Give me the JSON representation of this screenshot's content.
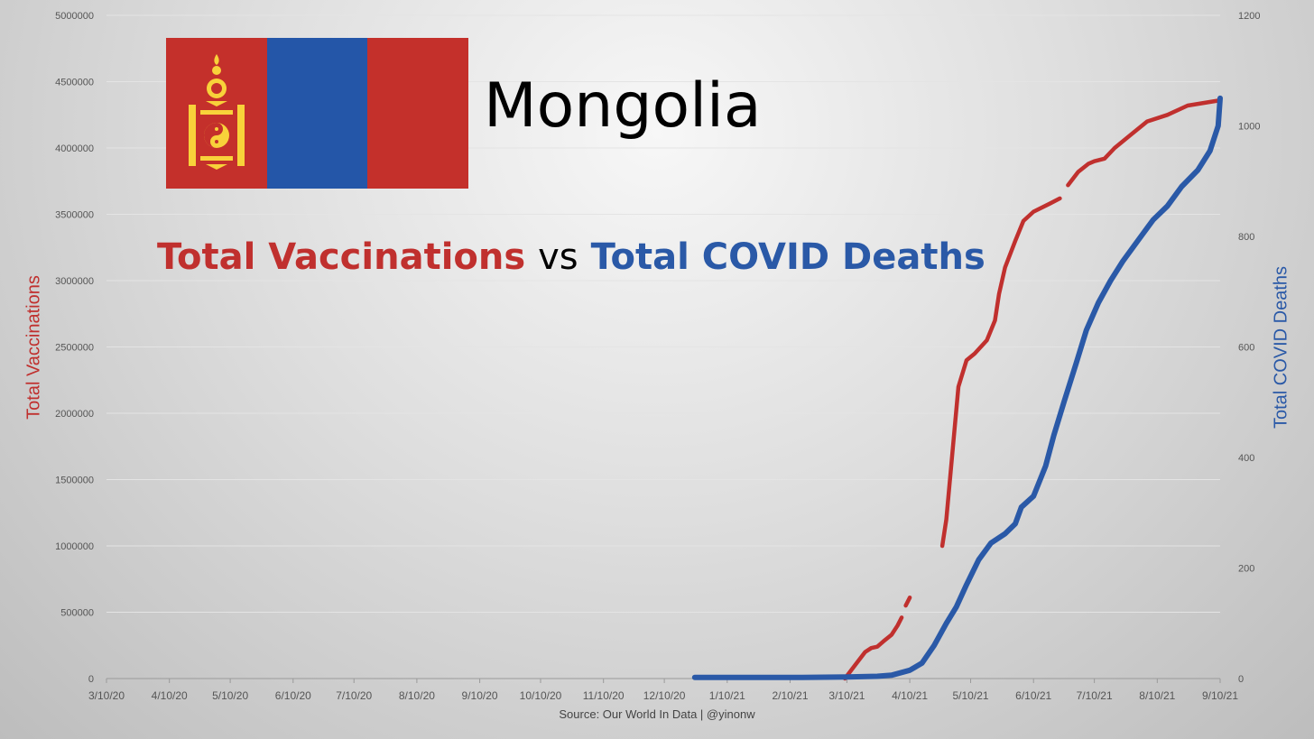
{
  "title": "Mongolia",
  "subtitle": {
    "part1": "Total Vaccinations",
    "part2": "vs",
    "part3": "Total COVID Deaths"
  },
  "source": "Source: Our World In Data | @yinonw",
  "colors": {
    "vaccinations": "#c0302e",
    "deaths": "#2a59a7",
    "flag_red": "#c4302b",
    "flag_blue": "#2456a8",
    "flag_yellow": "#f8d23a"
  },
  "flag_icon": "mongolia-flag-icon",
  "chart_data": {
    "type": "line",
    "xlabel": "",
    "ylabel_left": "Total Vaccinations",
    "ylabel_right": "Total COVID Deaths",
    "x_ticks": [
      "3/10/20",
      "4/10/20",
      "5/10/20",
      "6/10/20",
      "7/10/20",
      "8/10/20",
      "9/10/20",
      "10/10/20",
      "11/10/20",
      "12/10/20",
      "1/10/21",
      "2/10/21",
      "3/10/21",
      "4/10/21",
      "5/10/21",
      "6/10/21",
      "7/10/21",
      "8/10/21",
      "9/10/21"
    ],
    "y_left_ticks": [
      "0",
      "500000",
      "1000000",
      "1500000",
      "2000000",
      "2500000",
      "3000000",
      "3500000",
      "4000000",
      "4500000",
      "5000000"
    ],
    "y_right_ticks": [
      "0",
      "200",
      "400",
      "600",
      "800",
      "1000",
      "1200"
    ],
    "ylim_left": [
      0,
      5000000
    ],
    "ylim_right": [
      0,
      1200
    ],
    "grid": true,
    "series": [
      {
        "name": "Total Vaccinations",
        "axis": "left",
        "segments": [
          [
            [
              "3/9/21",
              0
            ],
            [
              "3/14/21",
              100000
            ],
            [
              "3/19/21",
              200000
            ],
            [
              "3/22/21",
              230000
            ],
            [
              "3/25/21",
              240000
            ],
            [
              "3/28/21",
              280000
            ],
            [
              "4/1/21",
              330000
            ],
            [
              "4/4/21",
              400000
            ],
            [
              "4/6/21",
              460000
            ]
          ],
          [
            [
              "4/8/21",
              550000
            ],
            [
              "4/10/21",
              610000
            ]
          ],
          [
            [
              "4/26/21",
              1000000
            ],
            [
              "4/28/21",
              1200000
            ],
            [
              "5/1/21",
              1700000
            ],
            [
              "5/4/21",
              2200000
            ],
            [
              "5/8/21",
              2400000
            ],
            [
              "5/12/21",
              2450000
            ],
            [
              "5/18/21",
              2550000
            ],
            [
              "5/22/21",
              2700000
            ],
            [
              "5/24/21",
              2900000
            ],
            [
              "5/27/21",
              3100000
            ],
            [
              "6/1/21",
              3300000
            ],
            [
              "6/5/21",
              3450000
            ],
            [
              "6/10/21",
              3520000
            ],
            [
              "6/18/21",
              3580000
            ],
            [
              "6/23/21",
              3620000
            ]
          ],
          [
            [
              "6/27/21",
              3720000
            ],
            [
              "7/2/21",
              3820000
            ],
            [
              "7/7/21",
              3880000
            ],
            [
              "7/10/21",
              3900000
            ],
            [
              "7/15/21",
              3920000
            ],
            [
              "7/20/21",
              4000000
            ],
            [
              "7/28/21",
              4100000
            ],
            [
              "8/5/21",
              4200000
            ],
            [
              "8/15/21",
              4250000
            ],
            [
              "8/25/21",
              4320000
            ],
            [
              "9/10/21",
              4360000
            ]
          ]
        ]
      },
      {
        "name": "Total COVID Deaths",
        "axis": "right",
        "segments": [
          [
            [
              "12/25/20",
              2
            ],
            [
              "1/15/21",
              2
            ],
            [
              "2/15/21",
              2
            ],
            [
              "3/10/21",
              3
            ],
            [
              "3/25/21",
              4
            ],
            [
              "4/1/21",
              6
            ],
            [
              "4/10/21",
              15
            ],
            [
              "4/16/21",
              28
            ],
            [
              "4/22/21",
              60
            ],
            [
              "4/28/21",
              100
            ],
            [
              "5/3/21",
              130
            ],
            [
              "5/8/21",
              170
            ],
            [
              "5/14/21",
              215
            ],
            [
              "5/20/21",
              245
            ],
            [
              "5/27/21",
              262
            ],
            [
              "6/1/21",
              280
            ],
            [
              "6/4/21",
              310
            ],
            [
              "6/10/21",
              330
            ],
            [
              "6/16/21",
              385
            ],
            [
              "6/20/21",
              440
            ],
            [
              "6/25/21",
              500
            ],
            [
              "7/1/21",
              570
            ],
            [
              "7/6/21",
              630
            ],
            [
              "7/12/21",
              680
            ],
            [
              "7/18/21",
              720
            ],
            [
              "7/24/21",
              755
            ],
            [
              "7/31/21",
              790
            ],
            [
              "8/8/21",
              830
            ],
            [
              "8/15/21",
              855
            ],
            [
              "8/22/21",
              890
            ],
            [
              "8/30/21",
              920
            ],
            [
              "9/5/21",
              955
            ],
            [
              "9/9/21",
              1000
            ],
            [
              "9/10/21",
              1050
            ]
          ]
        ]
      }
    ]
  }
}
